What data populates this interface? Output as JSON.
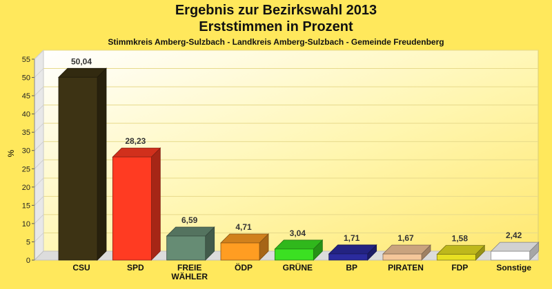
{
  "chart_data": {
    "type": "bar",
    "title": "Ergebnis zur Bezirkswahl 2013",
    "subtitle": "Erststimmen in Prozent",
    "caption": "Stimmkreis Amberg-Sulzbach - Landkreis Amberg-Sulzbach - Gemeinde Freudenberg",
    "ylabel": "%",
    "xlabel": "",
    "ylim": [
      0,
      55
    ],
    "yticks": [
      "0",
      "5",
      "10",
      "15",
      "20",
      "25",
      "30",
      "35",
      "40",
      "45",
      "50",
      "55"
    ],
    "grid": true,
    "legend": "none",
    "categories": [
      "CSU",
      "SPD",
      "FREIE\nWÄHLER",
      "ÖDP",
      "GRÜNE",
      "BP",
      "PIRATEN",
      "FDP",
      "Sonstige"
    ],
    "values": [
      50.04,
      28.23,
      6.59,
      4.71,
      3.04,
      1.71,
      1.67,
      1.58,
      2.42
    ],
    "value_labels": [
      "50,04",
      "28,23",
      "6,59",
      "4,71",
      "3,04",
      "1,71",
      "1,67",
      "1,58",
      "2,42"
    ],
    "colors": [
      "#3d3314",
      "#ff3b22",
      "#668c74",
      "#ff9d22",
      "#3be022",
      "#2b2b9e",
      "#f5c79a",
      "#e8e022",
      "#ffffff"
    ]
  }
}
